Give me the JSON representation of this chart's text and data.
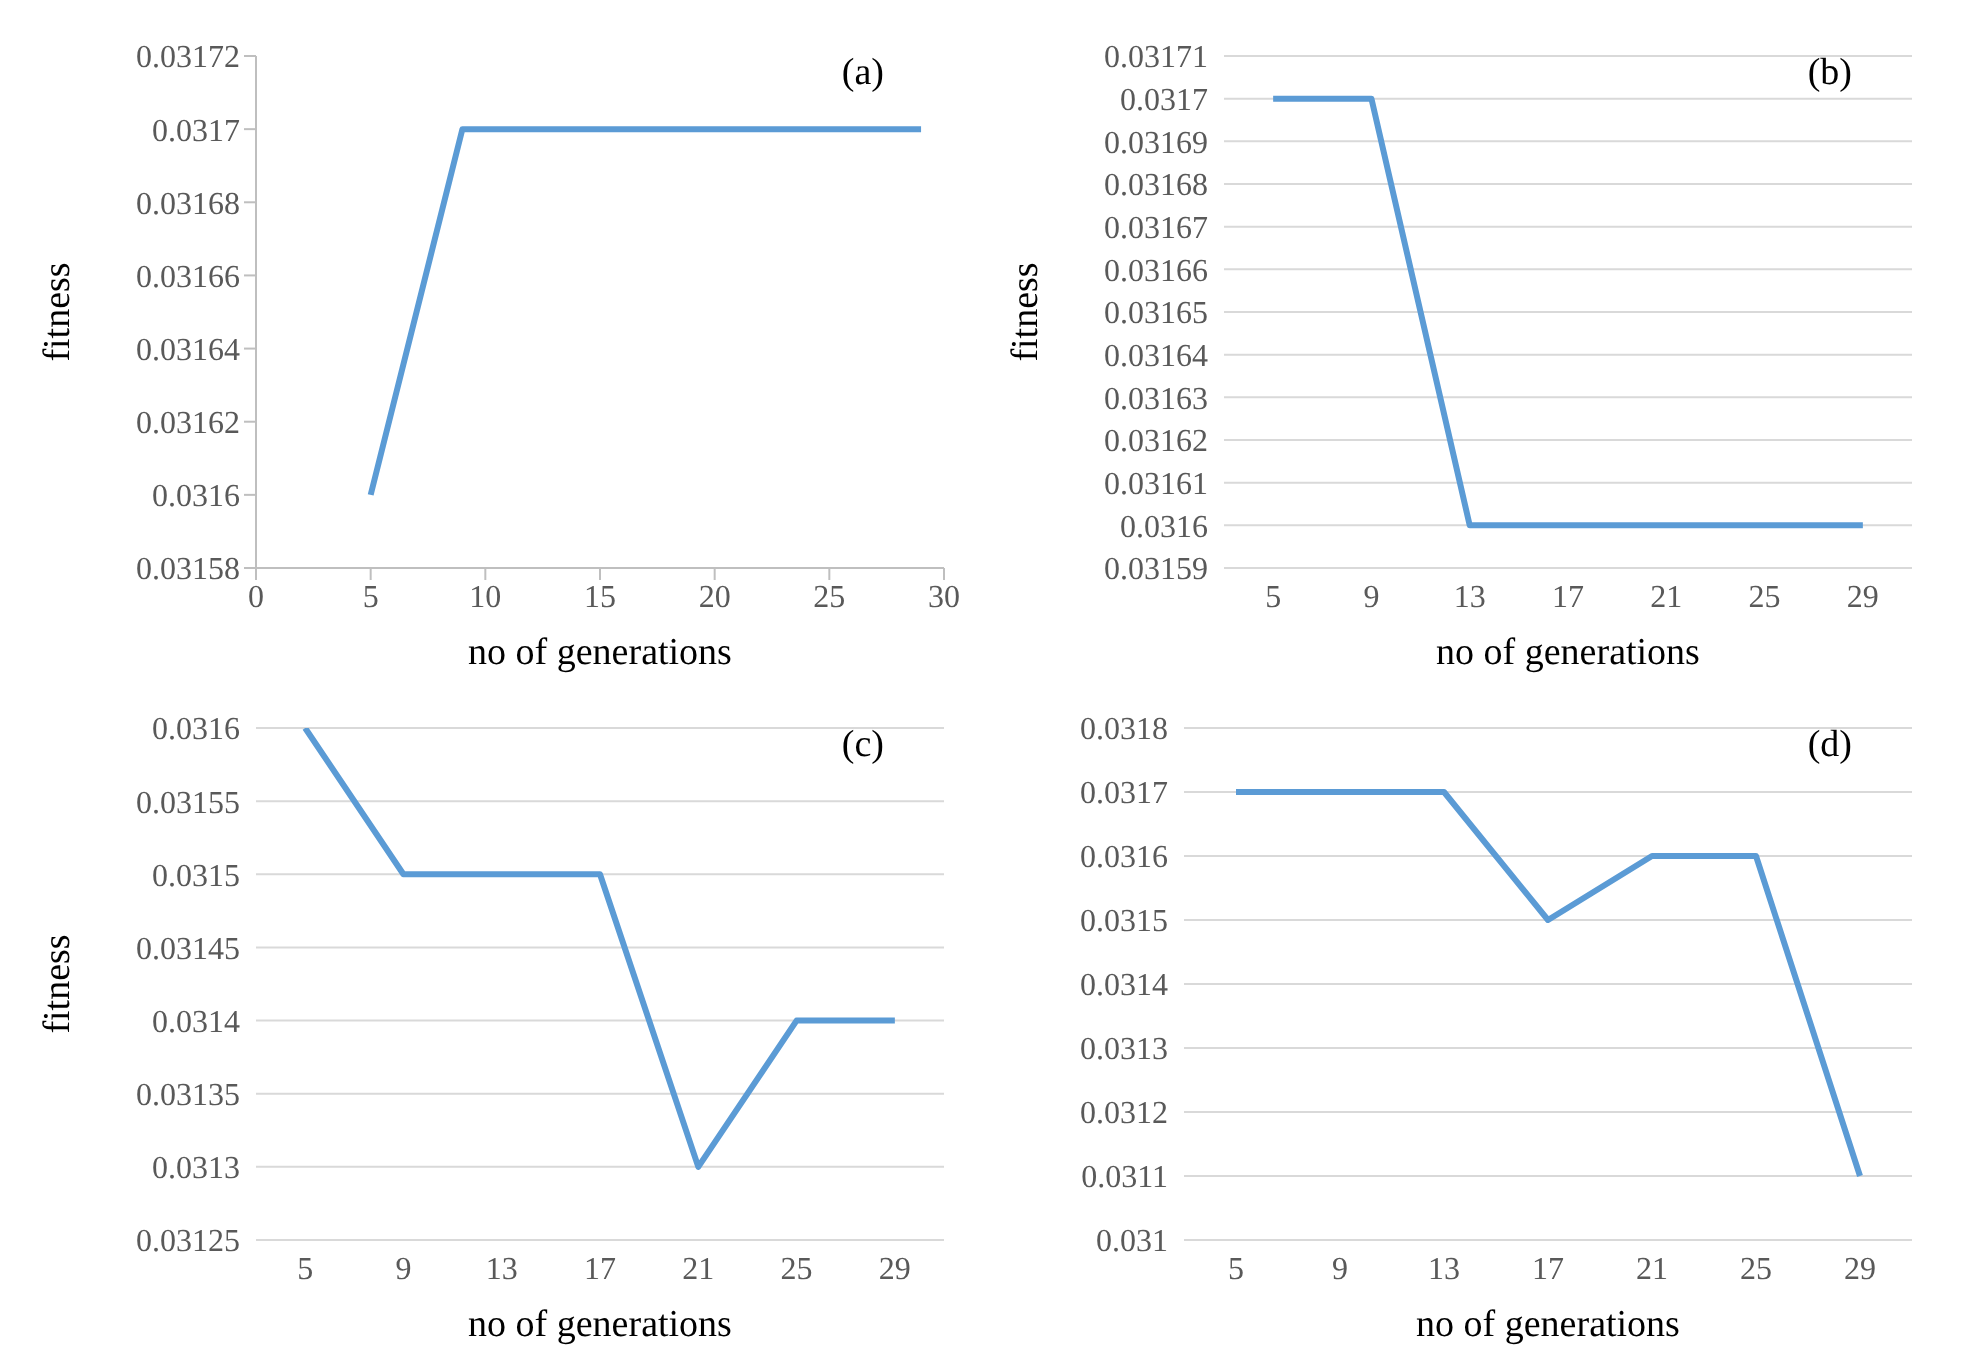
{
  "chart_data": [
    {
      "type": "line",
      "annotations": [
        "(a)"
      ],
      "xlabel": "no of generations",
      "ylabel": "fitness",
      "x": [
        5,
        9,
        13,
        17,
        21,
        25,
        29
      ],
      "values": [
        0.0316,
        0.0317,
        0.0317,
        0.0317,
        0.0317,
        0.0317,
        0.0317
      ],
      "color": "#5b9bd5",
      "marker": "none",
      "xlim": [
        0,
        30
      ],
      "xticks": [
        0,
        5,
        10,
        15,
        20,
        25,
        30
      ],
      "ylim": [
        0.03158,
        0.03172
      ],
      "yticks": [
        0.03158,
        0.0316,
        0.03162,
        0.03164,
        0.03166,
        0.03168,
        0.0317,
        0.03172
      ],
      "grid": false
    },
    {
      "type": "line",
      "annotations": [
        "(b)"
      ],
      "xlabel": "no of generations",
      "ylabel": "fitness",
      "categories": [
        "5",
        "9",
        "13",
        "17",
        "21",
        "25",
        "29"
      ],
      "values": [
        0.0317,
        0.0317,
        0.0316,
        0.0316,
        0.0316,
        0.0316,
        0.0316
      ],
      "color": "#5b9bd5",
      "marker": "none",
      "ylim": [
        0.03159,
        0.03171
      ],
      "yticks": [
        0.03159,
        0.0316,
        0.03161,
        0.03162,
        0.03163,
        0.03164,
        0.03165,
        0.03166,
        0.03167,
        0.03168,
        0.03169,
        0.0317,
        0.03171
      ],
      "grid": "y"
    },
    {
      "type": "line",
      "annotations": [
        "(c)"
      ],
      "xlabel": "no of generations",
      "ylabel": "fitness",
      "categories": [
        "5",
        "9",
        "13",
        "17",
        "21",
        "25",
        "29"
      ],
      "values": [
        0.0316,
        0.0315,
        0.0315,
        0.0315,
        0.0313,
        0.0314,
        0.0314
      ],
      "color": "#5b9bd5",
      "marker": "none",
      "ylim": [
        0.03125,
        0.0316
      ],
      "yticks": [
        0.03125,
        0.0313,
        0.03135,
        0.0314,
        0.03145,
        0.0315,
        0.03155,
        0.0316
      ],
      "grid": "y"
    },
    {
      "type": "line",
      "annotations": [
        "(d)"
      ],
      "xlabel": "no of generations",
      "categories": [
        "5",
        "9",
        "13",
        "17",
        "21",
        "25",
        "29"
      ],
      "values": [
        0.0317,
        0.0317,
        0.0317,
        0.0315,
        0.0316,
        0.0316,
        0.0311
      ],
      "color": "#5b9bd5",
      "marker": "none",
      "ylim": [
        0.031,
        0.0318
      ],
      "yticks": [
        0.031,
        0.0311,
        0.0312,
        0.0313,
        0.0314,
        0.0315,
        0.0316,
        0.0317,
        0.0318
      ],
      "grid": "y"
    }
  ]
}
